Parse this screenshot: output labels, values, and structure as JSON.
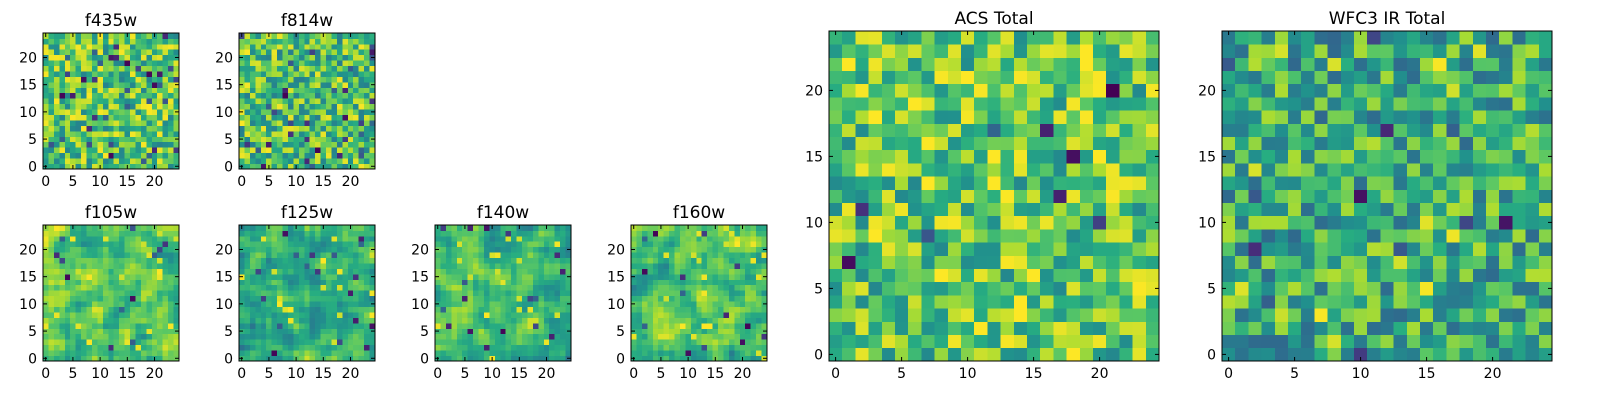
{
  "figure": {
    "description_panels": "8 heatmap panels"
  },
  "chart_data": [
    {
      "type": "heatmap",
      "title": "f435w",
      "x_ticks": [
        0,
        5,
        10,
        15,
        20
      ],
      "y_ticks": [
        0,
        5,
        10,
        15,
        20
      ],
      "xlim": [
        -0.5,
        24.5
      ],
      "ylim": [
        -0.5,
        24.5
      ],
      "grid_size": 25,
      "colormap": "viridis",
      "pattern": "noise",
      "bias": 0.72,
      "seed": 11,
      "dark_count": 36,
      "yellow_count": 28
    },
    {
      "type": "heatmap",
      "title": "f814w",
      "x_ticks": [
        0,
        5,
        10,
        15,
        20
      ],
      "y_ticks": [
        0,
        5,
        10,
        15,
        20
      ],
      "xlim": [
        -0.5,
        24.5
      ],
      "ylim": [
        -0.5,
        24.5
      ],
      "grid_size": 25,
      "colormap": "viridis",
      "pattern": "noise",
      "bias": 0.7,
      "seed": 23,
      "dark_count": 36,
      "yellow_count": 30
    },
    {
      "type": "heatmap",
      "title": "f105w",
      "x_ticks": [
        0,
        5,
        10,
        15,
        20
      ],
      "y_ticks": [
        0,
        5,
        10,
        15,
        20
      ],
      "xlim": [
        -0.5,
        24.5
      ],
      "ylim": [
        -0.5,
        24.5
      ],
      "grid_size": 25,
      "colormap": "viridis",
      "pattern": "smooth",
      "bias": 0.74,
      "seed": 37,
      "dark_count": 12,
      "yellow_count": 20
    },
    {
      "type": "heatmap",
      "title": "f125w",
      "x_ticks": [
        0,
        5,
        10,
        15,
        20
      ],
      "y_ticks": [
        0,
        5,
        10,
        15,
        20
      ],
      "xlim": [
        -0.5,
        24.5
      ],
      "ylim": [
        -0.5,
        24.5
      ],
      "grid_size": 25,
      "colormap": "viridis",
      "pattern": "smooth",
      "bias": 0.66,
      "seed": 41,
      "dark_count": 18,
      "yellow_count": 18
    },
    {
      "type": "heatmap",
      "title": "f140w",
      "x_ticks": [
        0,
        5,
        10,
        15,
        20
      ],
      "y_ticks": [
        0,
        5,
        10,
        15,
        20
      ],
      "xlim": [
        -0.5,
        24.5
      ],
      "ylim": [
        -0.5,
        24.5
      ],
      "grid_size": 25,
      "colormap": "viridis",
      "pattern": "smooth",
      "bias": 0.66,
      "seed": 53,
      "dark_count": 18,
      "yellow_count": 20
    },
    {
      "type": "heatmap",
      "title": "f160w",
      "x_ticks": [
        0,
        5,
        10,
        15,
        20
      ],
      "y_ticks": [
        0,
        5,
        10,
        15,
        20
      ],
      "xlim": [
        -0.5,
        24.5
      ],
      "ylim": [
        -0.5,
        24.5
      ],
      "grid_size": 25,
      "colormap": "viridis",
      "pattern": "smooth",
      "bias": 0.7,
      "seed": 67,
      "dark_count": 14,
      "yellow_count": 22
    },
    {
      "type": "heatmap",
      "title": "ACS Total",
      "x_ticks": [
        0,
        5,
        10,
        15,
        20
      ],
      "y_ticks": [
        0,
        5,
        10,
        15,
        20
      ],
      "xlim": [
        -0.5,
        24.5
      ],
      "ylim": [
        -0.5,
        24.5
      ],
      "grid_size": 25,
      "colormap": "viridis",
      "pattern": "noise",
      "bias": 0.74,
      "seed": 79,
      "dark_count": 10,
      "yellow_count": 40
    },
    {
      "type": "heatmap",
      "title": "WFC3 IR Total",
      "x_ticks": [
        0,
        5,
        10,
        15,
        20
      ],
      "y_ticks": [
        0,
        5,
        10,
        15,
        20
      ],
      "xlim": [
        -0.5,
        24.5
      ],
      "ylim": [
        -0.5,
        24.5
      ],
      "grid_size": 25,
      "colormap": "viridis",
      "pattern": "noise",
      "bias": 0.62,
      "seed": 97,
      "dark_count": 14,
      "yellow_count": 14
    }
  ]
}
